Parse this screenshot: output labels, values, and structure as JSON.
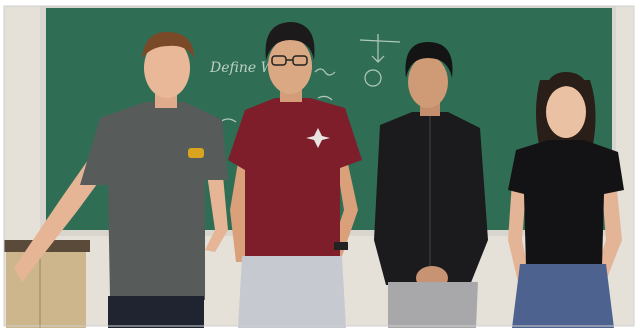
{
  "chalkboard": {
    "writing": "Define W"
  }
}
